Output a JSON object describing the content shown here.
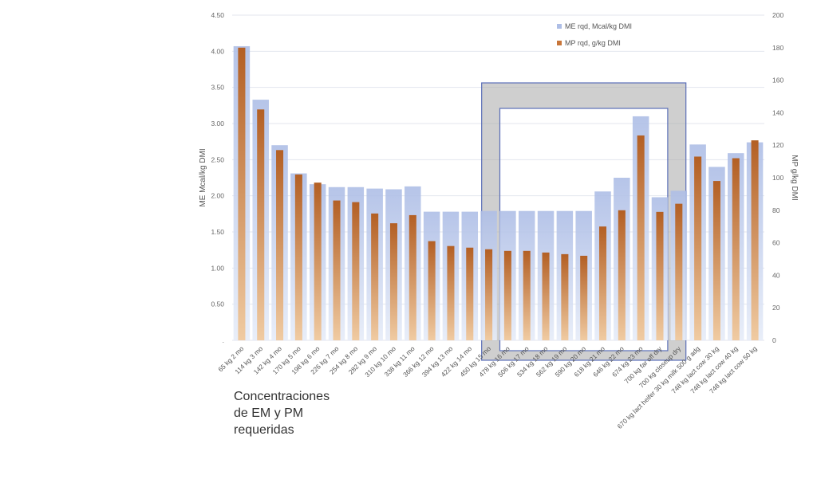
{
  "caption": {
    "line1": "Concentraciones",
    "line2": "de EM y PM",
    "line3": "requeridas"
  },
  "chart_data": {
    "type": "bar",
    "categories": [
      "65 kg 2 mo",
      "114 kg 3 mo",
      "142 kg 4 mo",
      "170 kg 5 mo",
      "198 kg 6 mo",
      "226 kg 7 mo",
      "254 kg 8 mo",
      "282 kg 9 mo",
      "310 kg 10 mo",
      "338 kg 11 mo",
      "366 kg 12 mo",
      "394 kg 13 mo",
      "422 kg 14 mo",
      "450 kg 15 mo",
      "478 kg 16 mo",
      "506 kg 17 mo",
      "534 kg 18 mo",
      "562 kg 19 mo",
      "590 kg 20 mo",
      "618 kg 21 mo",
      "646 kg 22 mo",
      "674 kg 23 mo",
      "700 kg far off dry",
      "700 kg closeup dry",
      "670 kg lact heifer 30 kg milk 500 g adg",
      "748 kg lact cow 30 kg",
      "748 kg lact cow 40 kg",
      "748 kg lact cow 50 kg"
    ],
    "series": [
      {
        "name": "ME rqd, Mcal/kg DMI",
        "axis": "left",
        "color": "#b4c3e8",
        "values": [
          4.07,
          3.33,
          2.7,
          2.31,
          2.16,
          2.12,
          2.12,
          2.1,
          2.09,
          2.13,
          1.78,
          1.78,
          1.78,
          1.79,
          1.79,
          1.79,
          1.79,
          1.79,
          1.79,
          2.06,
          2.25,
          3.1,
          1.98,
          2.07,
          2.71,
          2.4,
          2.59,
          2.74
        ]
      },
      {
        "name": "MP rqd, g/kg DMI",
        "axis": "right",
        "color": "#c8763a",
        "values": [
          180,
          142,
          117,
          102,
          97,
          86,
          85,
          78,
          72,
          77,
          61,
          58,
          57,
          56,
          55,
          55,
          54,
          53,
          52,
          70,
          80,
          126,
          79,
          84,
          113,
          98,
          112,
          123
        ]
      }
    ],
    "ylabel": "ME Mcal/kg DMI",
    "y2label": "MP g/kg DMI",
    "ylim": [
      0,
      4.5
    ],
    "y2lim": [
      0,
      200
    ],
    "yticks": [
      ".",
      "0.50",
      "1.00",
      "1.50",
      "2.00",
      "2.50",
      "3.00",
      "3.50",
      "4.00",
      "4.50"
    ],
    "y2ticks": [
      "0",
      "20",
      "40",
      "60",
      "80",
      "100",
      "120",
      "140",
      "160",
      "180",
      "200"
    ],
    "grid": true,
    "legend_position": "top-right",
    "highlight_range": [
      "450 kg 15 mo",
      "700 kg closeup dry"
    ]
  }
}
